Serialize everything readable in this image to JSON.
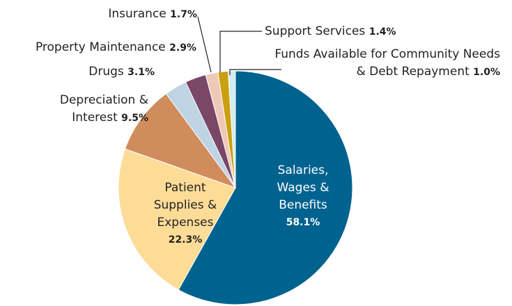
{
  "chart_data": {
    "type": "pie",
    "categories": [
      "Salaries, Wages & Benefits",
      "Patient Supplies & Expenses",
      "Depreciation & Interest",
      "Drugs",
      "Property Maintenance",
      "Insurance",
      "Support Services",
      "Funds Available for Community Needs & Debt Repayment"
    ],
    "values": [
      58.1,
      22.3,
      9.5,
      3.1,
      2.9,
      1.7,
      1.4,
      1.0
    ],
    "value_labels": [
      "58.1%",
      "22.3%",
      "9.5%",
      "3.1%",
      "2.9%",
      "1.7%",
      "1.4%",
      "1.0%"
    ],
    "colors": [
      "#00628f",
      "#fddc98",
      "#d08c5c",
      "#bed3e4",
      "#7a4766",
      "#f0c8b8",
      "#c9a010",
      "#d3ecf2"
    ]
  }
}
